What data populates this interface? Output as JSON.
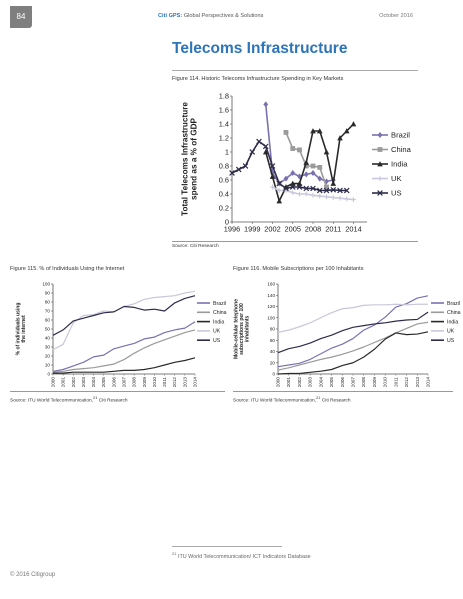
{
  "header": {
    "page_number": "84",
    "brand": "Citi GPS:",
    "subtitle": "Global Perspectives & Solutions",
    "date": "October 2016"
  },
  "title": "Telecoms Infrastructure",
  "fig114": {
    "caption": "Figure 114. Historic Telecoms Infrastructure Spending in Key Markets",
    "source": "Source: Citi Research"
  },
  "fig115": {
    "caption": "Figure 115. % of Individuals Using the Internet",
    "source": "Source: ITU World Telecommunication,",
    "source_sup": "21",
    "source_tail": " Citi Research"
  },
  "fig116": {
    "caption": "Figure 116. Mobile Subscriptions per 100 Inhabitants",
    "source": "Source: ITU World Telecommunication,",
    "source_sup": "21",
    "source_tail": " Citi Research"
  },
  "footnote": {
    "number": "21",
    "text": " ITU World Telecommunication/ ICT Indicators Database"
  },
  "copyright": "© 2016 Citigroup",
  "colors": {
    "Brazil": "#7a72b0",
    "China": "#9a9a9a",
    "India": "#2a2a2a",
    "UK": "#c8c8dc",
    "US": "#2c2c4a"
  },
  "chart_data": [
    {
      "type": "line",
      "title": "",
      "xlabel": "",
      "ylabel": "Total Telecoms Infrastructure spend as a % of GDP",
      "xlim": [
        1996,
        2016
      ],
      "ylim": [
        0,
        1.8
      ],
      "xticks": [
        1996,
        1999,
        2002,
        2005,
        2008,
        2011,
        2014
      ],
      "xtick_labels": [
        "1996",
        "1999",
        "2002",
        "2005",
        "2008",
        "2011",
        "2014"
      ],
      "yticks": [
        0,
        0.2,
        0.4,
        0.6,
        0.8,
        1,
        1.2,
        1.4,
        1.6,
        1.8
      ],
      "ytick_labels": [
        "0",
        "0.2",
        "0.4",
        "0.6",
        "0.8",
        "1",
        "1.2",
        "1.4",
        "1.6",
        "1.8"
      ],
      "legend": "right",
      "series": [
        {
          "name": "Brazil",
          "marker": "diamond",
          "x": [
            2001,
            2002,
            2003,
            2004,
            2005,
            2006,
            2007,
            2008,
            2009,
            2010,
            2011
          ],
          "y": [
            1.68,
            0.7,
            0.55,
            0.62,
            0.7,
            0.65,
            0.68,
            0.7,
            0.62,
            0.58,
            0.6
          ]
        },
        {
          "name": "China",
          "marker": "square",
          "x": [
            2004,
            2005,
            2006,
            2007,
            2008,
            2009,
            2010
          ],
          "y": [
            1.28,
            1.05,
            1.03,
            0.8,
            0.8,
            0.78,
            0.5
          ]
        },
        {
          "name": "India",
          "marker": "triangle",
          "x": [
            2001,
            2002,
            2003,
            2004,
            2005,
            2006,
            2007,
            2008,
            2009,
            2010,
            2011,
            2012,
            2013,
            2014
          ],
          "y": [
            1.0,
            0.65,
            0.3,
            0.5,
            0.55,
            0.55,
            0.85,
            1.3,
            1.3,
            1.0,
            0.55,
            1.2,
            1.3,
            1.4
          ]
        },
        {
          "name": "UK",
          "marker": "star",
          "x": [
            2002,
            2003,
            2004,
            2005,
            2006,
            2007,
            2008,
            2009,
            2010,
            2011,
            2012,
            2013,
            2014
          ],
          "y": [
            0.5,
            0.45,
            0.45,
            0.42,
            0.4,
            0.4,
            0.38,
            0.37,
            0.36,
            0.35,
            0.34,
            0.33,
            0.32
          ]
        },
        {
          "name": "US",
          "marker": "x",
          "x": [
            1996,
            1997,
            1998,
            1999,
            2000,
            2001,
            2002,
            2003,
            2004,
            2005,
            2006,
            2007,
            2008,
            2009,
            2010,
            2011,
            2012,
            2013
          ],
          "y": [
            0.7,
            0.75,
            0.8,
            1.0,
            1.15,
            1.08,
            0.8,
            0.55,
            0.48,
            0.5,
            0.5,
            0.48,
            0.48,
            0.45,
            0.45,
            0.46,
            0.45,
            0.45
          ]
        }
      ]
    },
    {
      "type": "line",
      "title": "",
      "xlabel": "",
      "ylabel": "% of individuals using the internet",
      "xlim": [
        2000,
        2014
      ],
      "ylim": [
        0,
        100
      ],
      "x": [
        2000,
        2001,
        2002,
        2003,
        2004,
        2005,
        2006,
        2007,
        2008,
        2009,
        2010,
        2011,
        2012,
        2013,
        2014
      ],
      "yticks": [
        0,
        10,
        20,
        30,
        40,
        50,
        60,
        70,
        80,
        90,
        100
      ],
      "legend": "right",
      "series": [
        {
          "name": "Brazil",
          "values": [
            3,
            5,
            9,
            13,
            19,
            21,
            28,
            31,
            34,
            39,
            41,
            46,
            49,
            51,
            58
          ]
        },
        {
          "name": "China",
          "values": [
            2,
            3,
            5,
            6,
            7,
            9,
            11,
            16,
            23,
            29,
            34,
            38,
            42,
            46,
            49
          ]
        },
        {
          "name": "India",
          "values": [
            1,
            1,
            2,
            2,
            2,
            2,
            3,
            4,
            4,
            5,
            7,
            10,
            13,
            15,
            18
          ]
        },
        {
          "name": "UK",
          "values": [
            27,
            33,
            57,
            65,
            66,
            70,
            69,
            75,
            78,
            83,
            85,
            86,
            87,
            90,
            92
          ]
        },
        {
          "name": "US",
          "values": [
            43,
            49,
            59,
            62,
            65,
            68,
            69,
            75,
            74,
            71,
            72,
            70,
            79,
            84,
            87
          ]
        }
      ]
    },
    {
      "type": "line",
      "title": "",
      "xlabel": "",
      "ylabel": "Mobile-cellular telephone subscriptions per 100 inhabitants",
      "xlim": [
        2000,
        2014
      ],
      "ylim": [
        0,
        160
      ],
      "x": [
        2000,
        2001,
        2002,
        2003,
        2004,
        2005,
        2006,
        2007,
        2008,
        2009,
        2010,
        2011,
        2012,
        2013,
        2014
      ],
      "yticks": [
        0,
        20,
        40,
        60,
        80,
        100,
        120,
        140,
        160
      ],
      "legend": "right",
      "series": [
        {
          "name": "Brazil",
          "values": [
            13,
            16,
            19,
            26,
            36,
            46,
            53,
            63,
            78,
            87,
            101,
            119,
            125,
            135,
            139
          ]
        },
        {
          "name": "China",
          "values": [
            7,
            11,
            16,
            21,
            26,
            30,
            35,
            41,
            48,
            56,
            64,
            73,
            81,
            89,
            92
          ]
        },
        {
          "name": "India",
          "values": [
            0,
            1,
            1,
            3,
            5,
            8,
            15,
            20,
            30,
            44,
            62,
            73,
            70,
            71,
            75
          ]
        },
        {
          "name": "UK",
          "values": [
            74,
            78,
            84,
            91,
            100,
            109,
            116,
            118,
            122,
            123,
            123,
            124,
            123,
            124,
            124
          ]
        },
        {
          "name": "US",
          "values": [
            38,
            45,
            49,
            55,
            63,
            69,
            77,
            83,
            86,
            89,
            91,
            94,
            96,
            97,
            110
          ]
        }
      ]
    }
  ]
}
